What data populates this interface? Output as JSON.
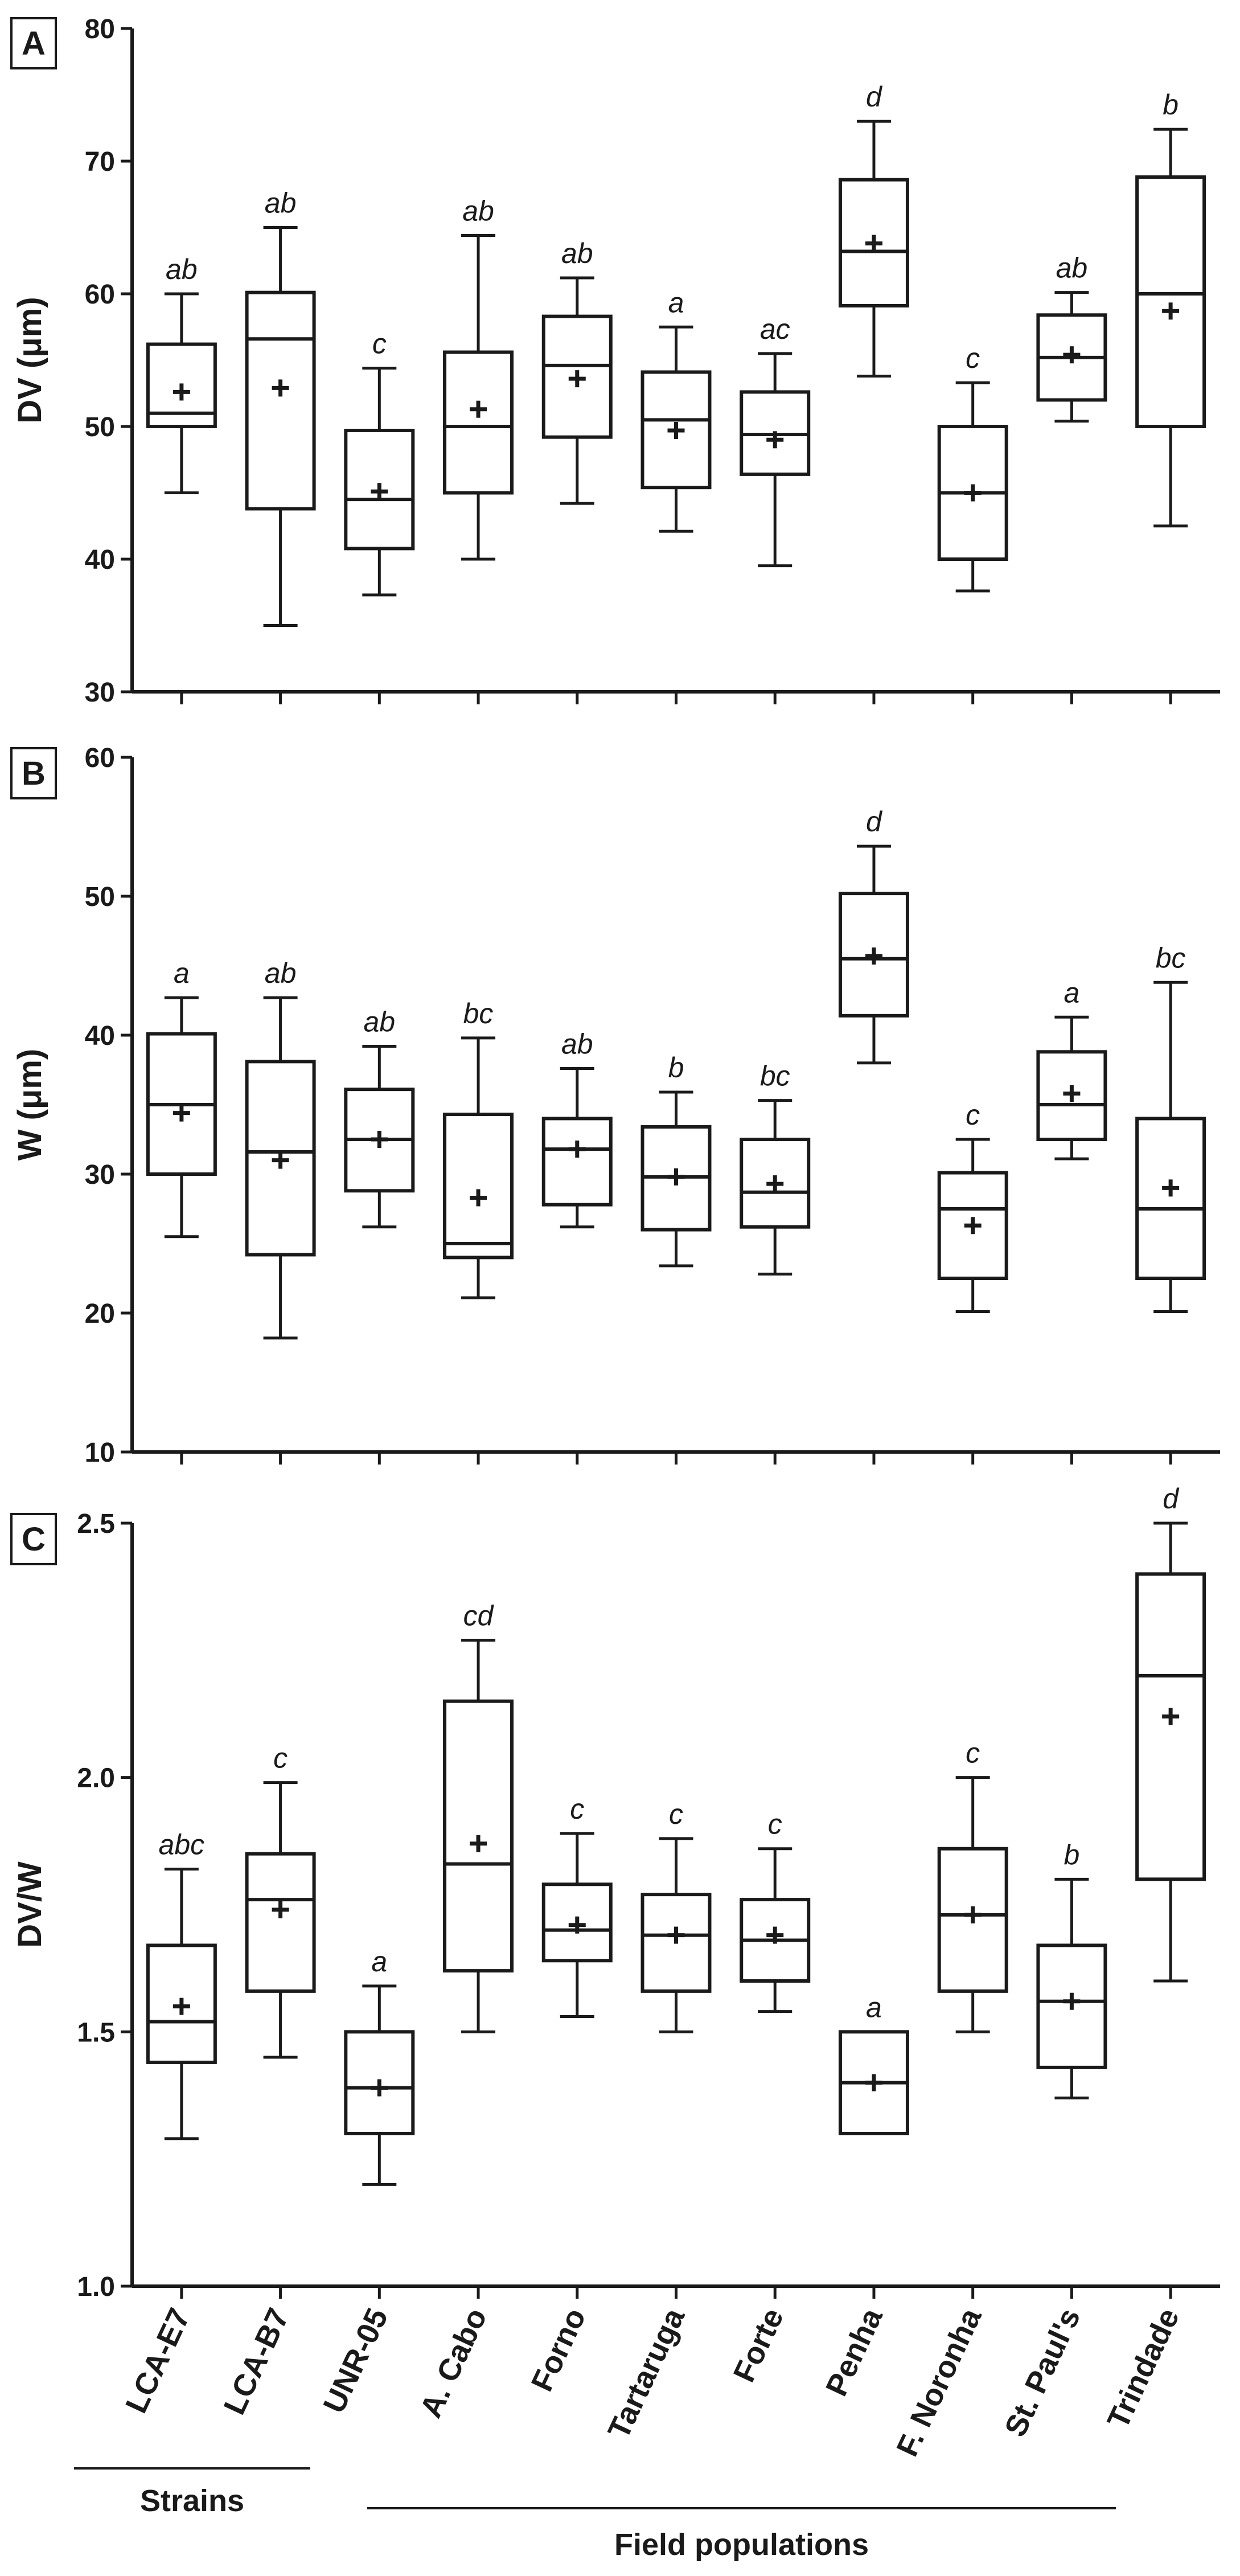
{
  "figure": {
    "categories": [
      "LCA-E7",
      "LCA-B7",
      "UNR-05",
      "A. Cabo",
      "Forno",
      "Tartaruga",
      "Forte",
      "Penha",
      "F. Noronha",
      "St. Paul's",
      "Trindade"
    ],
    "groups": [
      {
        "label": "Strains",
        "from": 0,
        "to": 1
      },
      {
        "label": "Field populations",
        "from": 2,
        "to": 10
      }
    ]
  },
  "chart_data": [
    {
      "type": "box",
      "panel": "A",
      "ylabel": "DV (μm)",
      "ylim": [
        30,
        80
      ],
      "yticks": [
        30,
        40,
        50,
        60,
        70,
        80
      ],
      "ytick_labels": [
        "30",
        "40",
        "50",
        "60",
        "70",
        "80"
      ],
      "boxes": [
        {
          "min": 45,
          "q1": 50,
          "median": 51,
          "q3": 56.2,
          "max": 60,
          "mean": 52.6,
          "sig": "ab"
        },
        {
          "min": 35,
          "q1": 43.8,
          "median": 56.6,
          "q3": 60.1,
          "max": 65,
          "mean": 52.9,
          "sig": "ab"
        },
        {
          "min": 37.3,
          "q1": 40.8,
          "median": 44.5,
          "q3": 49.7,
          "max": 54.4,
          "mean": 45.1,
          "sig": "c"
        },
        {
          "min": 40,
          "q1": 45,
          "median": 50,
          "q3": 55.6,
          "max": 64.4,
          "mean": 51.3,
          "sig": "ab"
        },
        {
          "min": 44.2,
          "q1": 49.2,
          "median": 54.6,
          "q3": 58.3,
          "max": 61.2,
          "mean": 53.6,
          "sig": "ab"
        },
        {
          "min": 42.1,
          "q1": 45.4,
          "median": 50.5,
          "q3": 54.1,
          "max": 57.5,
          "mean": 49.7,
          "sig": "a"
        },
        {
          "min": 39.5,
          "q1": 46.4,
          "median": 49.4,
          "q3": 52.6,
          "max": 55.5,
          "mean": 49,
          "sig": "ac"
        },
        {
          "min": 53.8,
          "q1": 59.1,
          "median": 63.2,
          "q3": 68.6,
          "max": 73,
          "mean": 63.8,
          "sig": "d"
        },
        {
          "min": 37.6,
          "q1": 40,
          "median": 45,
          "q3": 50,
          "max": 53.3,
          "mean": 45,
          "sig": "c"
        },
        {
          "min": 50.4,
          "q1": 52,
          "median": 55.2,
          "q3": 58.4,
          "max": 60.1,
          "mean": 55.4,
          "sig": "ab"
        },
        {
          "min": 42.5,
          "q1": 50,
          "median": 60,
          "q3": 68.8,
          "max": 72.4,
          "mean": 58.7,
          "sig": "b"
        }
      ]
    },
    {
      "type": "box",
      "panel": "B",
      "ylabel": "W (μm)",
      "ylim": [
        10,
        60
      ],
      "yticks": [
        10,
        20,
        30,
        40,
        50,
        60
      ],
      "ytick_labels": [
        "10",
        "20",
        "30",
        "40",
        "50",
        "60"
      ],
      "boxes": [
        {
          "min": 25.5,
          "q1": 30,
          "median": 35,
          "q3": 40.1,
          "max": 42.7,
          "mean": 34.4,
          "sig": "a"
        },
        {
          "min": 18.2,
          "q1": 24.2,
          "median": 31.6,
          "q3": 38.1,
          "max": 42.7,
          "mean": 31,
          "sig": "ab"
        },
        {
          "min": 26.2,
          "q1": 28.8,
          "median": 32.5,
          "q3": 36.1,
          "max": 39.2,
          "mean": 32.5,
          "sig": "ab"
        },
        {
          "min": 21.1,
          "q1": 24,
          "median": 25,
          "q3": 34.3,
          "max": 39.8,
          "mean": 28.3,
          "sig": "bc"
        },
        {
          "min": 26.2,
          "q1": 27.8,
          "median": 31.8,
          "q3": 34,
          "max": 37.6,
          "mean": 31.8,
          "sig": "ab"
        },
        {
          "min": 23.4,
          "q1": 26,
          "median": 29.8,
          "q3": 33.4,
          "max": 35.9,
          "mean": 29.8,
          "sig": "b"
        },
        {
          "min": 22.8,
          "q1": 26.2,
          "median": 28.7,
          "q3": 32.5,
          "max": 35.3,
          "mean": 29.3,
          "sig": "bc"
        },
        {
          "min": 38,
          "q1": 41.4,
          "median": 45.5,
          "q3": 50.2,
          "max": 53.6,
          "mean": 45.7,
          "sig": "d"
        },
        {
          "min": 20.1,
          "q1": 22.5,
          "median": 27.5,
          "q3": 30.1,
          "max": 32.5,
          "mean": 26.3,
          "sig": "c"
        },
        {
          "min": 31.1,
          "q1": 32.5,
          "median": 35,
          "q3": 38.8,
          "max": 41.3,
          "mean": 35.8,
          "sig": "a"
        },
        {
          "min": 20.1,
          "q1": 22.5,
          "median": 27.5,
          "q3": 34,
          "max": 43.8,
          "mean": 29,
          "sig": "bc"
        }
      ]
    },
    {
      "type": "box",
      "panel": "C",
      "ylabel": "DV/W",
      "ylim": [
        1.0,
        2.5
      ],
      "yticks": [
        1.0,
        1.5,
        2.0,
        2.5
      ],
      "ytick_labels": [
        "1.0",
        "1.5",
        "2.0",
        "2.5"
      ],
      "boxes": [
        {
          "min": 1.29,
          "q1": 1.44,
          "median": 1.52,
          "q3": 1.67,
          "max": 1.82,
          "mean": 1.55,
          "sig": "abc"
        },
        {
          "min": 1.45,
          "q1": 1.58,
          "median": 1.76,
          "q3": 1.85,
          "max": 1.99,
          "mean": 1.74,
          "sig": "c"
        },
        {
          "min": 1.2,
          "q1": 1.3,
          "median": 1.39,
          "q3": 1.5,
          "max": 1.59,
          "mean": 1.39,
          "sig": "a"
        },
        {
          "min": 1.5,
          "q1": 1.62,
          "median": 1.83,
          "q3": 2.15,
          "max": 2.27,
          "mean": 1.87,
          "sig": "cd"
        },
        {
          "min": 1.53,
          "q1": 1.64,
          "median": 1.7,
          "q3": 1.79,
          "max": 1.89,
          "mean": 1.71,
          "sig": "c"
        },
        {
          "min": 1.5,
          "q1": 1.58,
          "median": 1.69,
          "q3": 1.77,
          "max": 1.88,
          "mean": 1.69,
          "sig": "c"
        },
        {
          "min": 1.54,
          "q1": 1.6,
          "median": 1.68,
          "q3": 1.76,
          "max": 1.86,
          "mean": 1.69,
          "sig": "c"
        },
        {
          "min": 1.3,
          "q1": 1.3,
          "median": 1.4,
          "q3": 1.5,
          "max": 1.5,
          "mean": 1.4,
          "sig": "a"
        },
        {
          "min": 1.5,
          "q1": 1.58,
          "median": 1.73,
          "q3": 1.86,
          "max": 2.0,
          "mean": 1.73,
          "sig": "c"
        },
        {
          "min": 1.37,
          "q1": 1.43,
          "median": 1.56,
          "q3": 1.67,
          "max": 1.8,
          "mean": 1.56,
          "sig": "b"
        },
        {
          "min": 1.6,
          "q1": 1.8,
          "median": 2.2,
          "q3": 2.4,
          "max": 2.5,
          "mean": 2.12,
          "sig": "d"
        }
      ]
    }
  ]
}
